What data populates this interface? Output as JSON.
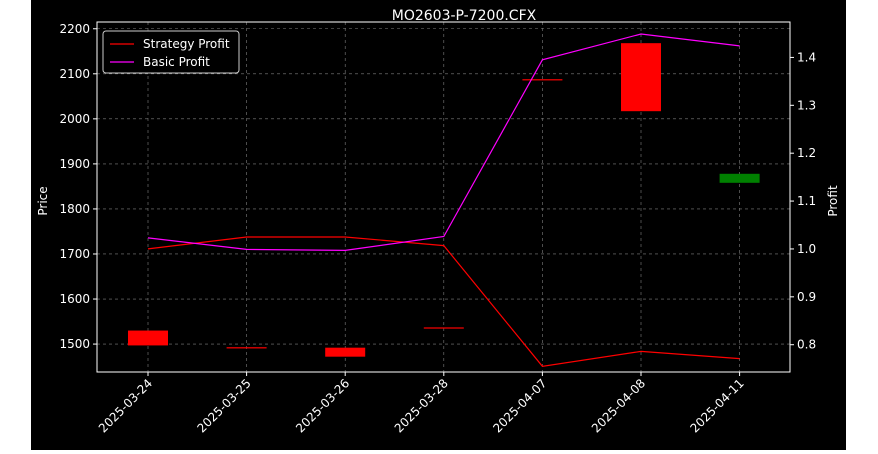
{
  "chart_data": {
    "type": "candlestick+line",
    "title": "MO2603-P-7200.CFX",
    "ylabel_left": "Price",
    "ylabel_right": "Profit",
    "categories": [
      "2025-03-24",
      "2025-03-25",
      "2025-03-26",
      "2025-03-28",
      "2025-04-07",
      "2025-04-08",
      "2025-04-11"
    ],
    "ylim_left": [
      1438,
      2215
    ],
    "ylim_right": [
      0.743,
      1.474
    ],
    "yticks_left": [
      1500,
      1600,
      1700,
      1800,
      1900,
      2000,
      2100,
      2200
    ],
    "yticks_right": [
      0.8,
      0.9,
      1.0,
      1.1,
      1.2,
      1.3,
      1.4
    ],
    "grid": true,
    "legend_position": "upper-left",
    "candles": [
      {
        "date": "2025-03-24",
        "open": 1530,
        "close": 1497,
        "color": "#ff0000"
      },
      {
        "date": "2025-03-25",
        "open": 1493,
        "close": 1491,
        "color": "#ff0000"
      },
      {
        "date": "2025-03-26",
        "open": 1492,
        "close": 1472,
        "color": "#ff0000"
      },
      {
        "date": "2025-03-28",
        "open": 1537,
        "close": 1536,
        "color": "#ff0000"
      },
      {
        "date": "2025-04-07",
        "open": 2088,
        "close": 2087,
        "color": "#ff0000"
      },
      {
        "date": "2025-04-08",
        "open": 2168,
        "close": 2017,
        "color": "#ff0000"
      },
      {
        "date": "2025-04-11",
        "open": 1858,
        "close": 1878,
        "color": "#008000"
      }
    ],
    "series": [
      {
        "name": "Strategy Profit",
        "color": "#ff0000",
        "values": [
          1.0,
          1.025,
          1.025,
          1.007,
          0.755,
          0.786,
          0.771
        ]
      },
      {
        "name": "Basic Profit",
        "color": "#ff00ff",
        "values": [
          1.023,
          0.999,
          0.997,
          1.026,
          1.395,
          1.449,
          1.424
        ]
      }
    ]
  }
}
